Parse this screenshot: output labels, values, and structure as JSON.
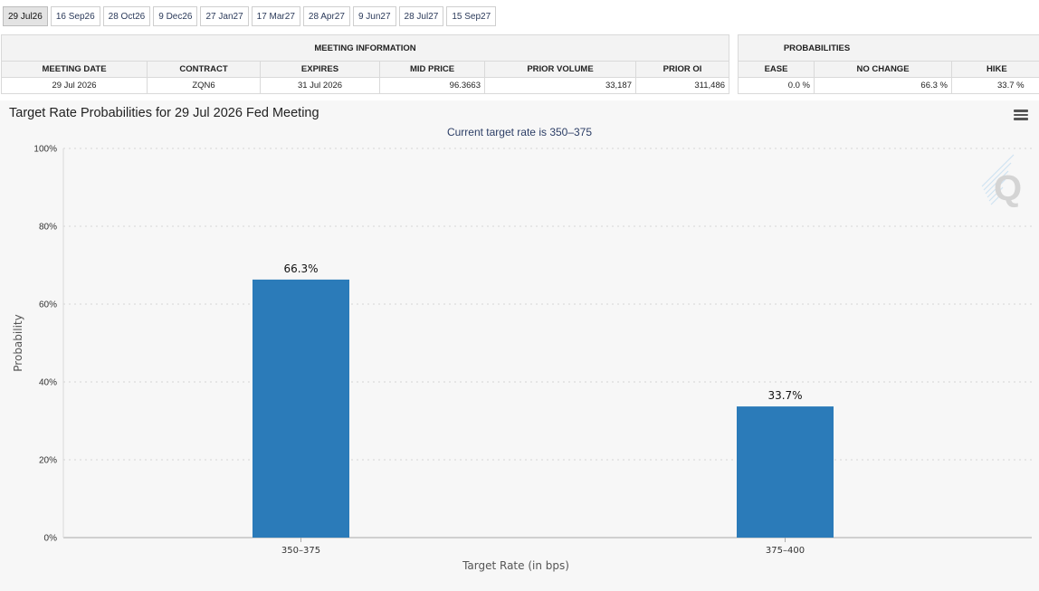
{
  "tabs": [
    "29 Jul26",
    "16 Sep26",
    "28 Oct26",
    "9 Dec26",
    "27 Jan27",
    "17 Mar27",
    "28 Apr27",
    "9 Jun27",
    "28 Jul27",
    "15 Sep27"
  ],
  "active_tab": 0,
  "meeting_info": {
    "header": "MEETING INFORMATION",
    "columns": [
      "MEETING DATE",
      "CONTRACT",
      "EXPIRES",
      "MID PRICE",
      "PRIOR VOLUME",
      "PRIOR OI"
    ],
    "row": [
      "29 Jul 2026",
      "ZQN6",
      "31 Jul 2026",
      "96.3663",
      "33,187",
      "311,486"
    ]
  },
  "probabilities": {
    "header": "PROBABILITIES",
    "columns": [
      "EASE",
      "NO CHANGE",
      "HIKE"
    ],
    "row": [
      "0.0 %",
      "66.3 %",
      "33.7 %"
    ]
  },
  "chart_data": {
    "type": "bar",
    "title": "Target Rate Probabilities for 29 Jul 2026 Fed Meeting",
    "subtitle": "Current target rate is 350–375",
    "categories": [
      "350–375",
      "375–400"
    ],
    "values": [
      66.3,
      33.7
    ],
    "data_labels": [
      "66.3%",
      "33.7%"
    ],
    "xlabel": "Target Rate (in bps)",
    "ylabel": "Probability",
    "ylim": [
      0,
      100
    ],
    "yticks": [
      0,
      20,
      40,
      60,
      80,
      100
    ],
    "ytick_labels": [
      "0%",
      "20%",
      "40%",
      "60%",
      "80%",
      "100%"
    ],
    "grid": true,
    "bar_color": "#2b7bb9"
  },
  "watermark_letter": "Q"
}
